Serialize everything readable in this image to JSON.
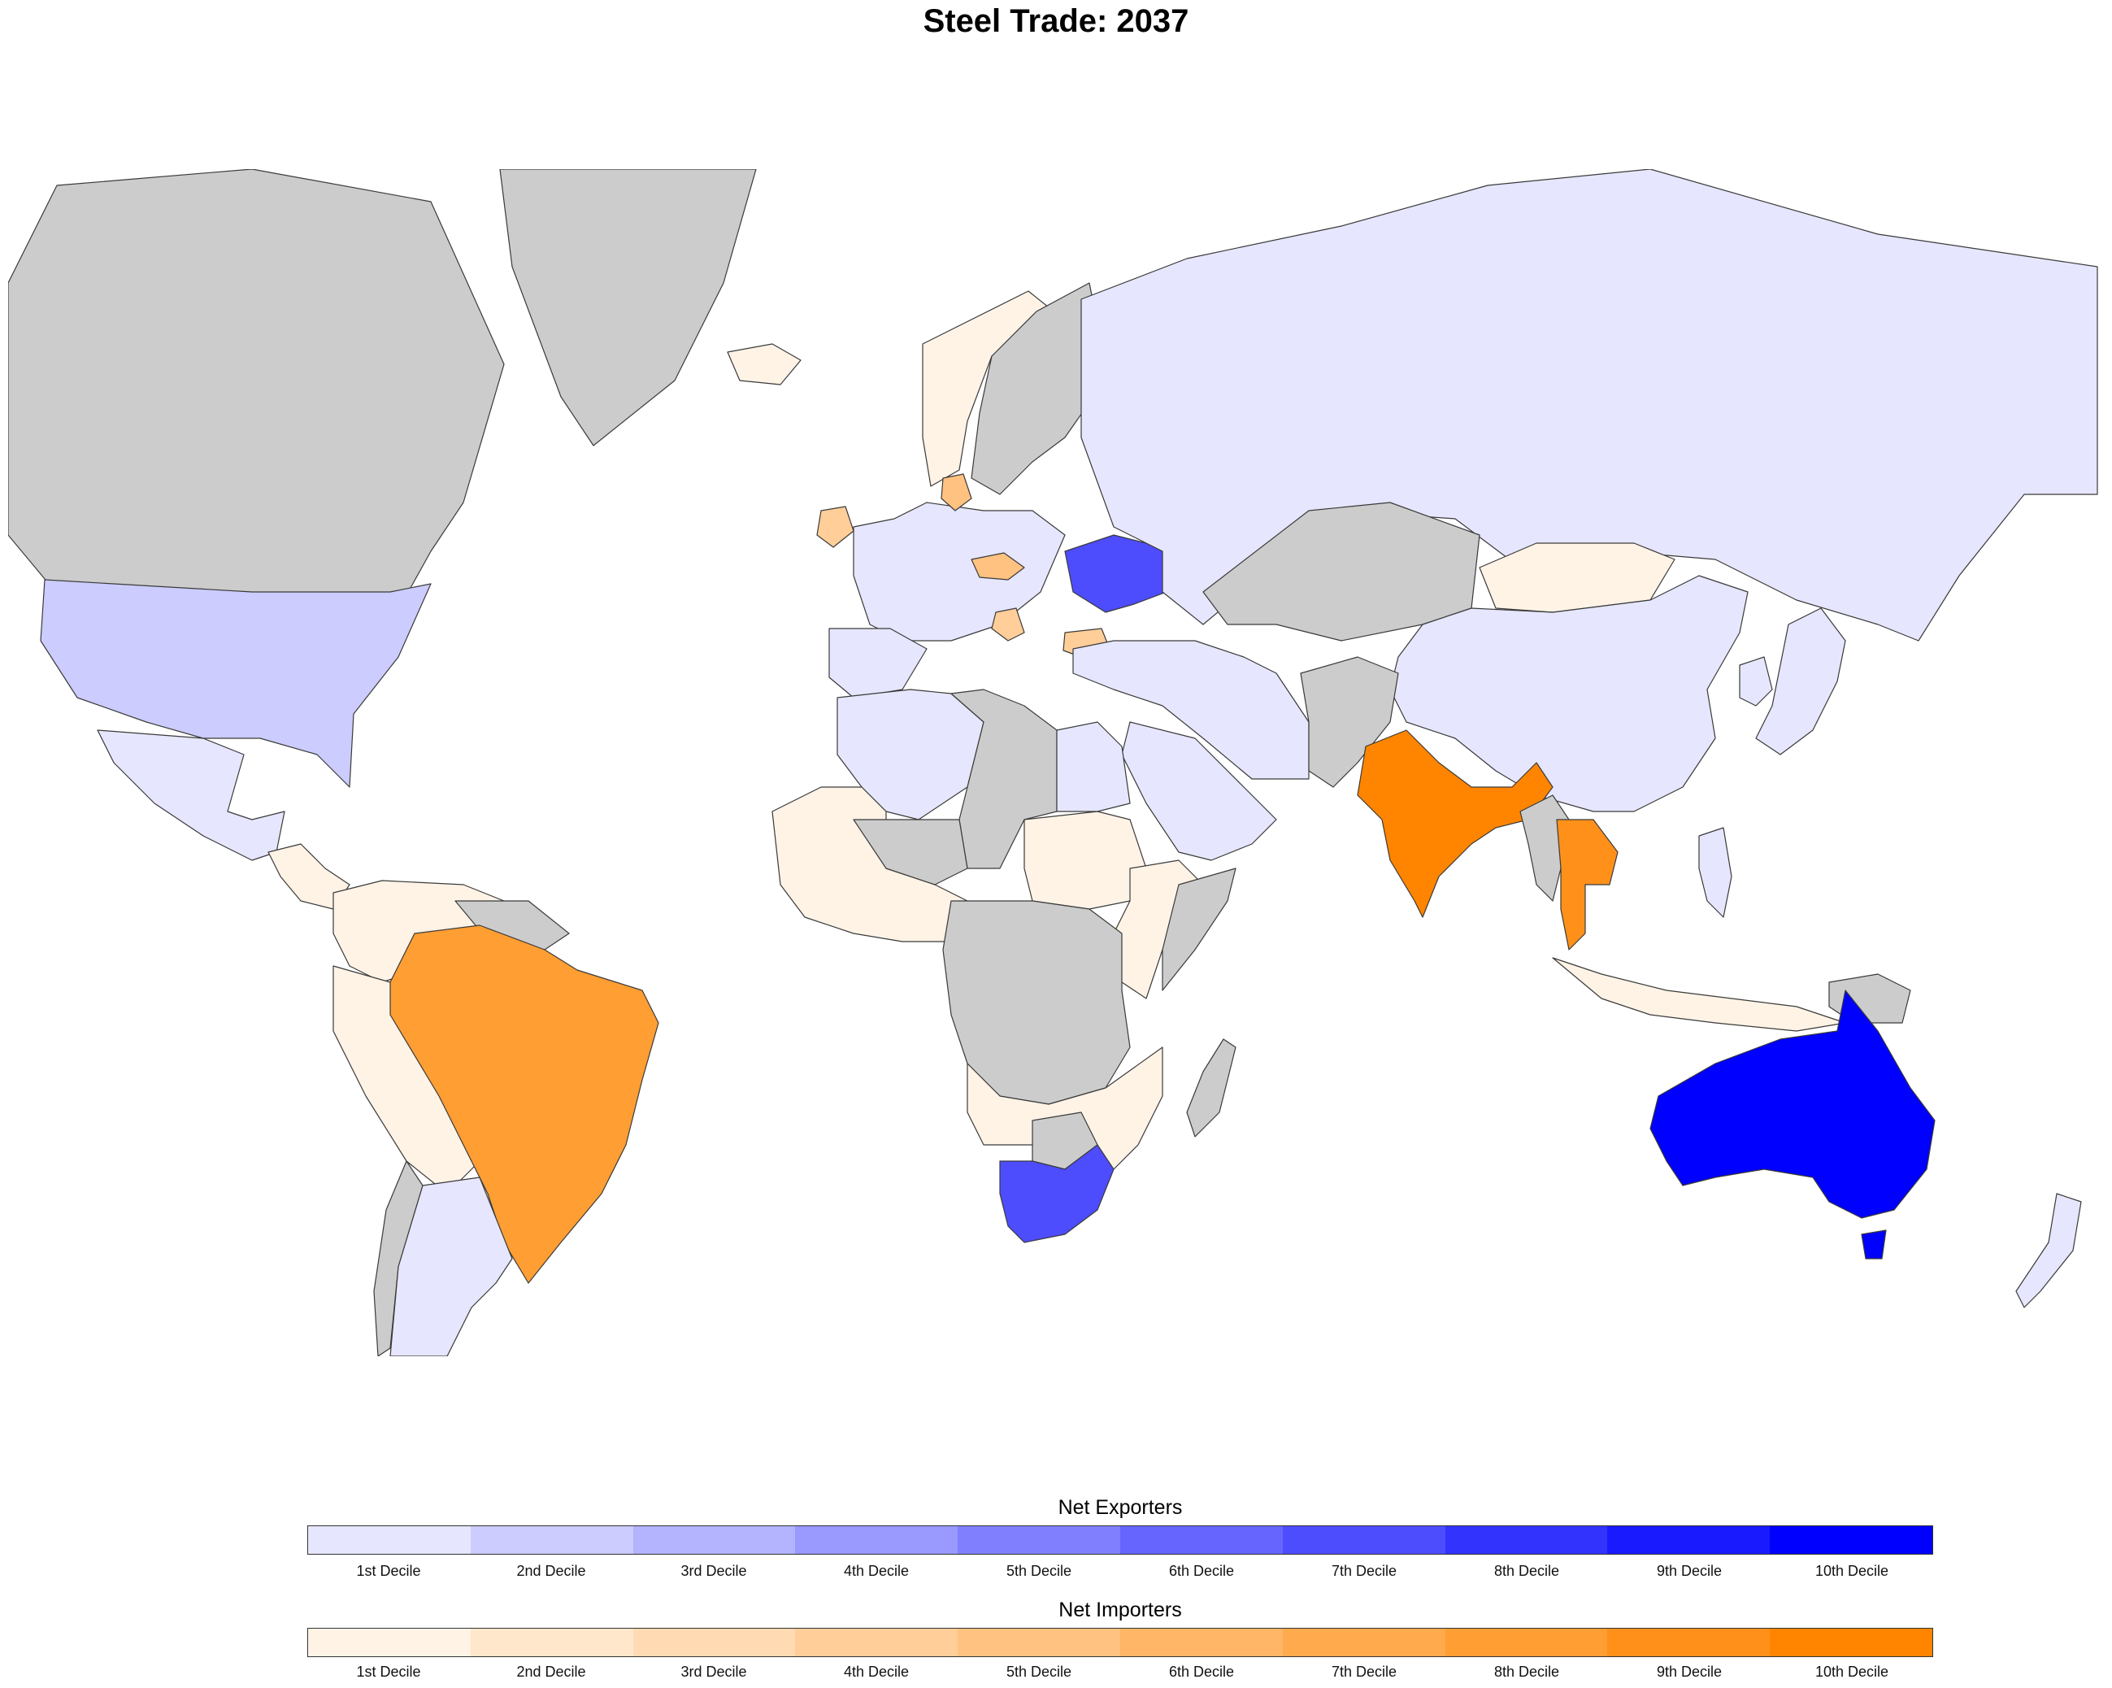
{
  "title": "Steel Trade: 2037",
  "colors": {
    "no_data": "#cccccc",
    "exporters": [
      "#e6e6fe",
      "#ccccfe",
      "#b3b3fe",
      "#9999fe",
      "#8080fe",
      "#6666fe",
      "#4d4dfe",
      "#3333fe",
      "#1a1afe",
      "#0000fe"
    ],
    "importers": [
      "#fff3e6",
      "#ffe7cc",
      "#ffdab3",
      "#ffce99",
      "#ffc280",
      "#ffb666",
      "#ffaa4d",
      "#ff9e33",
      "#ff911a",
      "#ff8500"
    ]
  },
  "legend": {
    "exporters_title": "Net Exporters",
    "importers_title": "Net Importers",
    "labels": [
      "1st Decile",
      "2nd Decile",
      "3rd Decile",
      "4th Decile",
      "5th Decile",
      "6th Decile",
      "7th Decile",
      "8th Decile",
      "9th Decile",
      "10th Decile"
    ]
  },
  "regions": [
    {
      "name": "canada",
      "group": "none"
    },
    {
      "name": "greenland",
      "group": "none"
    },
    {
      "name": "usa",
      "group": "exporter",
      "decile": 2
    },
    {
      "name": "mexico",
      "group": "exporter",
      "decile": 1
    },
    {
      "name": "central-america",
      "group": "importer",
      "decile": 1
    },
    {
      "name": "venezuela-colombia",
      "group": "importer",
      "decile": 1
    },
    {
      "name": "guianas",
      "group": "none"
    },
    {
      "name": "peru-bolivia",
      "group": "importer",
      "decile": 1
    },
    {
      "name": "brazil",
      "group": "importer",
      "decile": 8
    },
    {
      "name": "chile",
      "group": "none"
    },
    {
      "name": "argentina",
      "group": "exporter",
      "decile": 1
    },
    {
      "name": "iceland",
      "group": "importer",
      "decile": 1
    },
    {
      "name": "norway",
      "group": "importer",
      "decile": 1
    },
    {
      "name": "sweden-finland",
      "group": "none"
    },
    {
      "name": "western-europe",
      "group": "exporter",
      "decile": 1
    },
    {
      "name": "iberia",
      "group": "exporter",
      "decile": 1
    },
    {
      "name": "ireland",
      "group": "importer",
      "decile": 4
    },
    {
      "name": "denmark",
      "group": "importer",
      "decile": 5
    },
    {
      "name": "czechia",
      "group": "importer",
      "decile": 5
    },
    {
      "name": "croatia",
      "group": "importer",
      "decile": 4
    },
    {
      "name": "bulgaria",
      "group": "importer",
      "decile": 4
    },
    {
      "name": "ukraine",
      "group": "exporter",
      "decile": 7
    },
    {
      "name": "russia",
      "group": "exporter",
      "decile": 1
    },
    {
      "name": "kazakhstan",
      "group": "none"
    },
    {
      "name": "mongolia",
      "group": "importer",
      "decile": 1
    },
    {
      "name": "china",
      "group": "exporter",
      "decile": 1
    },
    {
      "name": "turkey-iran",
      "group": "exporter",
      "decile": 1
    },
    {
      "name": "afghanistan-pakistan",
      "group": "none"
    },
    {
      "name": "saudi-arabia",
      "group": "exporter",
      "decile": 1
    },
    {
      "name": "india",
      "group": "importer",
      "decile": 10
    },
    {
      "name": "myanmar",
      "group": "none"
    },
    {
      "name": "thailand",
      "group": "importer",
      "decile": 9
    },
    {
      "name": "japan",
      "group": "exporter",
      "decile": 1
    },
    {
      "name": "korea",
      "group": "exporter",
      "decile": 1
    },
    {
      "name": "indonesia",
      "group": "importer",
      "decile": 1
    },
    {
      "name": "philippines",
      "group": "exporter",
      "decile": 1
    },
    {
      "name": "papua-new-guinea",
      "group": "none"
    },
    {
      "name": "australia",
      "group": "exporter",
      "decile": 10
    },
    {
      "name": "new-zealand",
      "group": "exporter",
      "decile": 1
    },
    {
      "name": "north-africa",
      "group": "exporter",
      "decile": 1
    },
    {
      "name": "libya-chad",
      "group": "none"
    },
    {
      "name": "egypt",
      "group": "exporter",
      "decile": 1
    },
    {
      "name": "west-africa",
      "group": "importer",
      "decile": 1
    },
    {
      "name": "sahel",
      "group": "none"
    },
    {
      "name": "sudan",
      "group": "importer",
      "decile": 1
    },
    {
      "name": "ethiopia-kenya",
      "group": "importer",
      "decile": 1
    },
    {
      "name": "somalia",
      "group": "none"
    },
    {
      "name": "central-africa",
      "group": "none"
    },
    {
      "name": "southern-africa",
      "group": "importer",
      "decile": 1
    },
    {
      "name": "botswana",
      "group": "none"
    },
    {
      "name": "south-africa",
      "group": "exporter",
      "decile": 7
    },
    {
      "name": "madagascar",
      "group": "none"
    }
  ]
}
